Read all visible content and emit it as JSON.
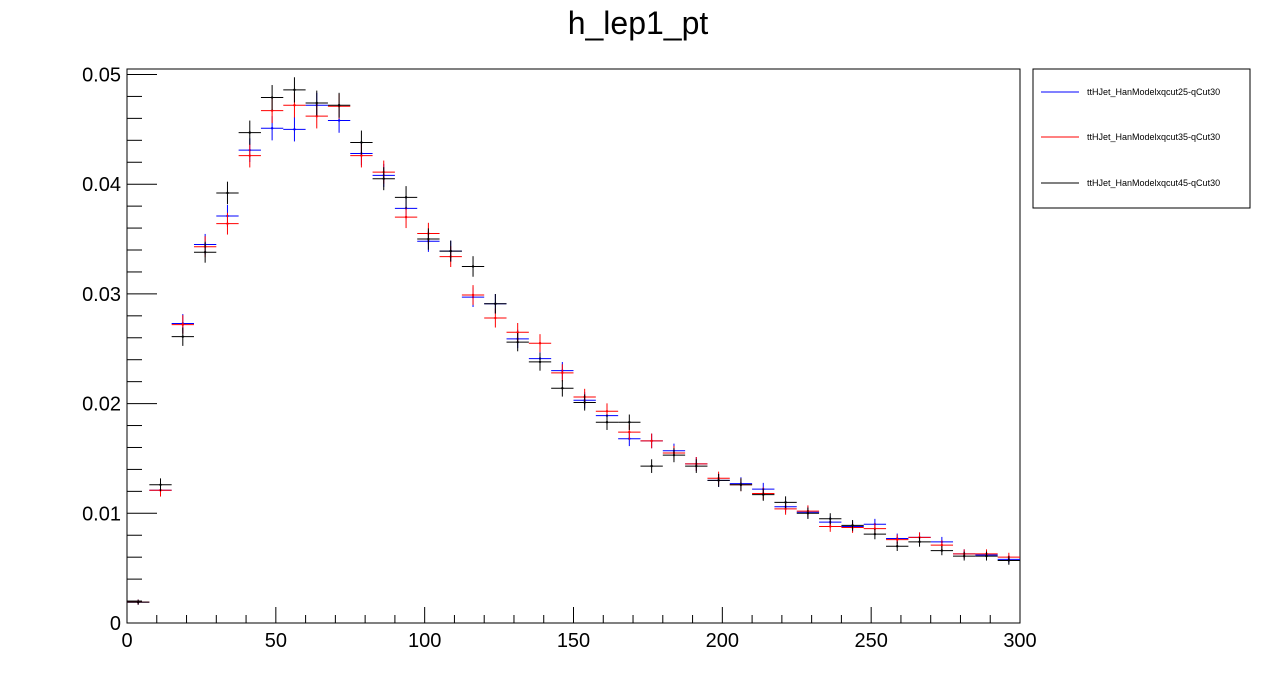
{
  "chart_data": {
    "type": "scatter",
    "title": "h_lep1_pt",
    "xlabel": "",
    "ylabel": "",
    "xlim": [
      0,
      300
    ],
    "ylim": [
      0,
      0.0505
    ],
    "grid": false,
    "legend_position": "top-right",
    "bin_width": 7.5,
    "x_ticks": [
      0,
      50,
      100,
      150,
      200,
      250,
      300
    ],
    "x_tick_labels": [
      "0",
      "50",
      "100",
      "150",
      "200",
      "250",
      "300"
    ],
    "y_ticks": [
      0,
      0.01,
      0.02,
      0.03,
      0.04,
      0.05
    ],
    "y_tick_labels": [
      "0",
      "0.01",
      "0.02",
      "0.03",
      "0.04",
      "0.05"
    ],
    "x": [
      3.75,
      11.25,
      18.75,
      26.25,
      33.75,
      41.25,
      48.75,
      56.25,
      63.75,
      71.25,
      78.75,
      86.25,
      93.75,
      101.25,
      108.75,
      116.25,
      123.75,
      131.25,
      138.75,
      146.25,
      153.75,
      161.25,
      168.75,
      176.25,
      183.75,
      191.25,
      198.75,
      206.25,
      213.75,
      221.25,
      228.75,
      236.25,
      243.75,
      251.25,
      258.75,
      266.25,
      273.75,
      281.25,
      288.75,
      296.25
    ],
    "series": [
      {
        "name": "ttHJet_HanModelxqcut25-qCut30",
        "color": "#0000ff",
        "values": [
          0.0019,
          0.0121,
          0.0273,
          0.0345,
          0.0371,
          0.0431,
          0.0451,
          0.045,
          0.0472,
          0.0458,
          0.0428,
          0.0408,
          0.0378,
          0.0348,
          0.0339,
          0.0297,
          0.0291,
          0.0259,
          0.0241,
          0.023,
          0.0203,
          0.0189,
          0.0168,
          0.0166,
          0.0157,
          0.0145,
          0.013,
          0.0127,
          0.0122,
          0.0106,
          0.0101,
          0.0092,
          0.0088,
          0.009,
          0.0077,
          0.0078,
          0.0074,
          0.0063,
          0.0062,
          0.0058
        ]
      },
      {
        "name": "ttHJet_HanModelxqcut35-qCut30",
        "color": "#ff0000",
        "values": [
          0.0019,
          0.0121,
          0.0272,
          0.0343,
          0.0364,
          0.0426,
          0.0467,
          0.0472,
          0.0462,
          0.0471,
          0.0426,
          0.0411,
          0.037,
          0.0355,
          0.0334,
          0.0299,
          0.0278,
          0.0265,
          0.0255,
          0.0228,
          0.0206,
          0.0193,
          0.0174,
          0.0166,
          0.0155,
          0.0145,
          0.0132,
          0.0126,
          0.0118,
          0.0104,
          0.0102,
          0.0088,
          0.0087,
          0.0086,
          0.0076,
          0.0078,
          0.0071,
          0.0063,
          0.0063,
          0.006
        ]
      },
      {
        "name": "ttHJet_HanModelxqcut45-qCut30",
        "color": "#000000",
        "values": [
          0.0019,
          0.0126,
          0.0261,
          0.0338,
          0.0392,
          0.0447,
          0.0479,
          0.0486,
          0.0474,
          0.0472,
          0.0438,
          0.0405,
          0.0388,
          0.035,
          0.0339,
          0.0325,
          0.0291,
          0.0256,
          0.0238,
          0.0214,
          0.0201,
          0.0183,
          0.0183,
          0.0143,
          0.0153,
          0.0143,
          0.013,
          0.0126,
          0.0117,
          0.011,
          0.01,
          0.0095,
          0.0089,
          0.0081,
          0.007,
          0.0074,
          0.0066,
          0.0061,
          0.0061,
          0.0057
        ]
      }
    ]
  }
}
